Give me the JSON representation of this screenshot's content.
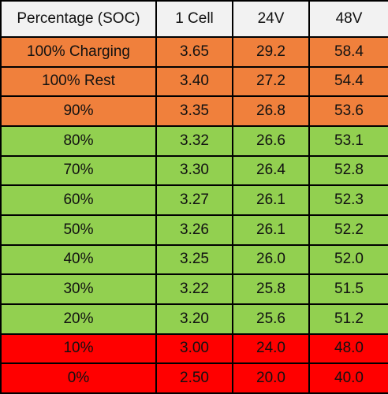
{
  "table": {
    "headers": [
      "Percentage (SOC)",
      "1 Cell",
      "24V",
      "48V"
    ],
    "rows": [
      {
        "cells": [
          "100% Charging",
          "3.65",
          "29.2",
          "58.4"
        ],
        "color": "#f0803c"
      },
      {
        "cells": [
          "100% Rest",
          "3.40",
          "27.2",
          "54.4"
        ],
        "color": "#f0803c"
      },
      {
        "cells": [
          "90%",
          "3.35",
          "26.8",
          "53.6"
        ],
        "color": "#f0803c"
      },
      {
        "cells": [
          "80%",
          "3.32",
          "26.6",
          "53.1"
        ],
        "color": "#92d050"
      },
      {
        "cells": [
          "70%",
          "3.30",
          "26.4",
          "52.8"
        ],
        "color": "#92d050"
      },
      {
        "cells": [
          "60%",
          "3.27",
          "26.1",
          "52.3"
        ],
        "color": "#92d050"
      },
      {
        "cells": [
          "50%",
          "3.26",
          "26.1",
          "52.2"
        ],
        "color": "#92d050"
      },
      {
        "cells": [
          "40%",
          "3.25",
          "26.0",
          "52.0"
        ],
        "color": "#92d050"
      },
      {
        "cells": [
          "30%",
          "3.22",
          "25.8",
          "51.5"
        ],
        "color": "#92d050"
      },
      {
        "cells": [
          "20%",
          "3.20",
          "25.6",
          "51.2"
        ],
        "color": "#92d050"
      },
      {
        "cells": [
          "10%",
          "3.00",
          "24.0",
          "48.0"
        ],
        "color": "#ff0000"
      },
      {
        "cells": [
          "0%",
          "2.50",
          "20.0",
          "40.0"
        ],
        "color": "#ff0000"
      }
    ]
  },
  "colors": {
    "header_bg": "#f2f2f2",
    "orange": "#f0803c",
    "green": "#92d050",
    "red": "#ff0000",
    "border": "#000000"
  }
}
